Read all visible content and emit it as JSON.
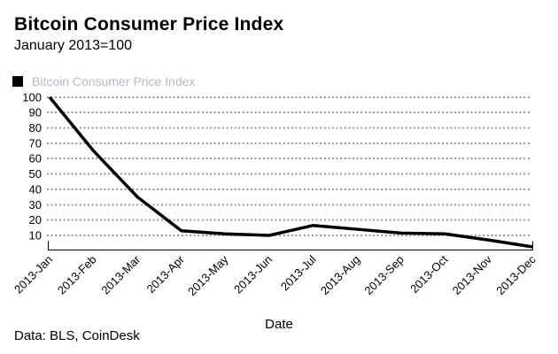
{
  "header": {
    "title": "Bitcoin Consumer Price Index",
    "subtitle": "January 2013=100"
  },
  "legend": {
    "swatch_color": "#000000",
    "label_color": "#b4bac1"
  },
  "chart_data": {
    "type": "line",
    "title": "Bitcoin Consumer Price Index",
    "subtitle": "January 2013=100",
    "xlabel": "Date",
    "ylabel": "",
    "x": [
      "2013-Jan",
      "2013-Feb",
      "2013-Mar",
      "2013-Apr",
      "2013-May",
      "2013-Jun",
      "2013-Jul",
      "2013-Aug",
      "2013-Sep",
      "2013-Oct",
      "2013-Nov",
      "2013-Dec"
    ],
    "series": [
      {
        "name": "Bitcoin Consumer Price Index",
        "color": "#000000",
        "values": [
          100,
          65,
          35,
          13,
          11,
          10,
          16.5,
          14,
          11.5,
          11,
          7,
          2.5
        ]
      }
    ],
    "yticks": [
      10,
      20,
      30,
      40,
      50,
      60,
      70,
      80,
      90,
      100
    ],
    "ylim": [
      0,
      100
    ],
    "grid": "dotted-horizontal",
    "gridline_color": "#999999",
    "axis_color": "#000000",
    "legend_position": "top-left"
  },
  "footer": {
    "credit": "Data: BLS, CoinDesk"
  }
}
